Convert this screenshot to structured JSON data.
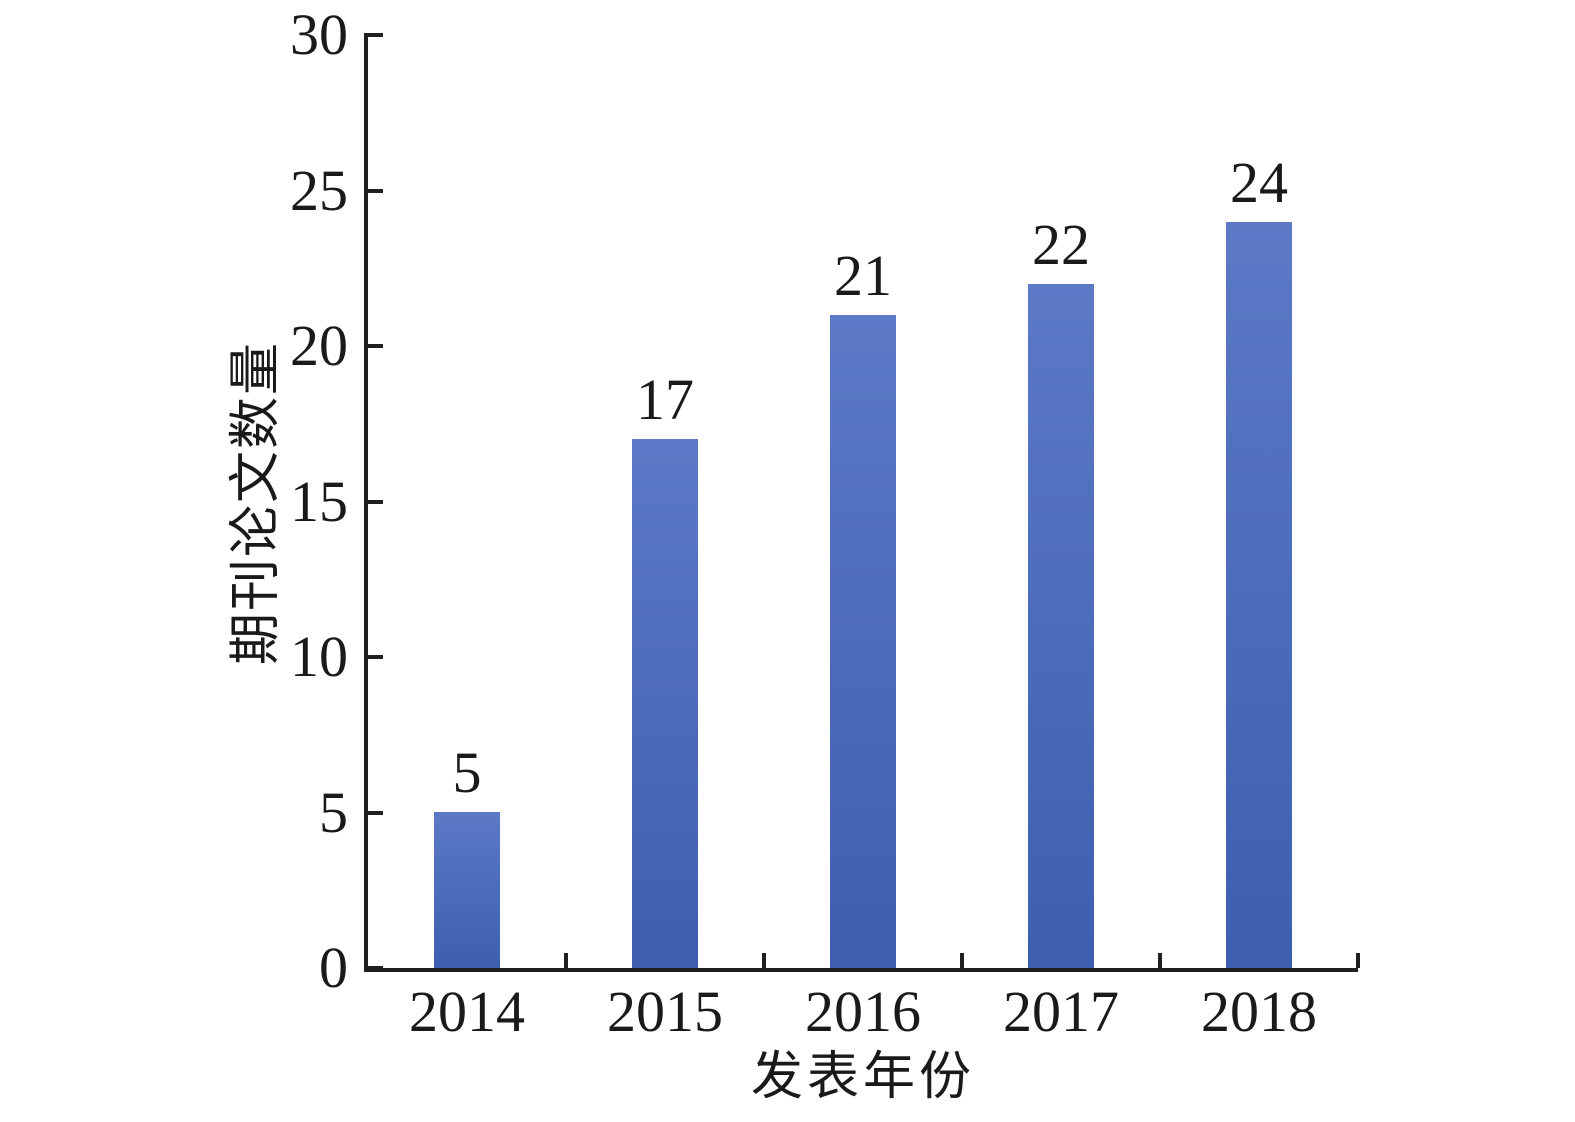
{
  "chart_data": {
    "type": "bar",
    "title": "",
    "categories": [
      "2014",
      "2015",
      "2016",
      "2017",
      "2018"
    ],
    "values": [
      5,
      17,
      21,
      22,
      24
    ],
    "bar_value_labels": [
      "5",
      "17",
      "21",
      "22",
      "24"
    ],
    "xlabel": "发表年份",
    "ylabel": "期刊论文数量",
    "ylim": [
      0,
      30
    ],
    "yticks": [
      0,
      5,
      10,
      15,
      20,
      25,
      30
    ],
    "grid": false,
    "legend_position": "none",
    "colors": {
      "bar_gradient_top": "#5b79c5",
      "bar_gradient_bottom": "#3e5eb0",
      "axis": "#231f20",
      "text": "#1a1a1a",
      "background": "#ffffff"
    }
  }
}
